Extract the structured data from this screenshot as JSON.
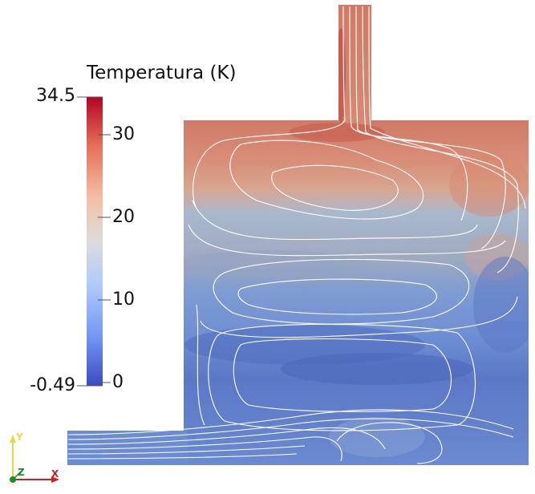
{
  "colorbar": {
    "title": "Temperatura (K)",
    "max_label": "34.5",
    "min_label": "-0.49",
    "ticks": [
      "30",
      "20",
      "10",
      "0"
    ],
    "range": [
      -0.49,
      34.5
    ],
    "colormap_stops": [
      "#3b4cc0",
      "#7396f5",
      "#b0cbfc",
      "#dddcdc",
      "#f6bfa6",
      "#e57058",
      "#b40426"
    ]
  },
  "axes_triad": {
    "y_label": "Y",
    "z_label": "Z",
    "x_label": "X",
    "colors": {
      "y": "#e8d84a",
      "x": "#cc2222",
      "z": "#1f8a2a"
    }
  },
  "field": {
    "colors": {
      "hot": "#d9826a",
      "mid": "#a8b3c4",
      "cold": "#5a79c8",
      "streamline": "#ffffff"
    }
  }
}
